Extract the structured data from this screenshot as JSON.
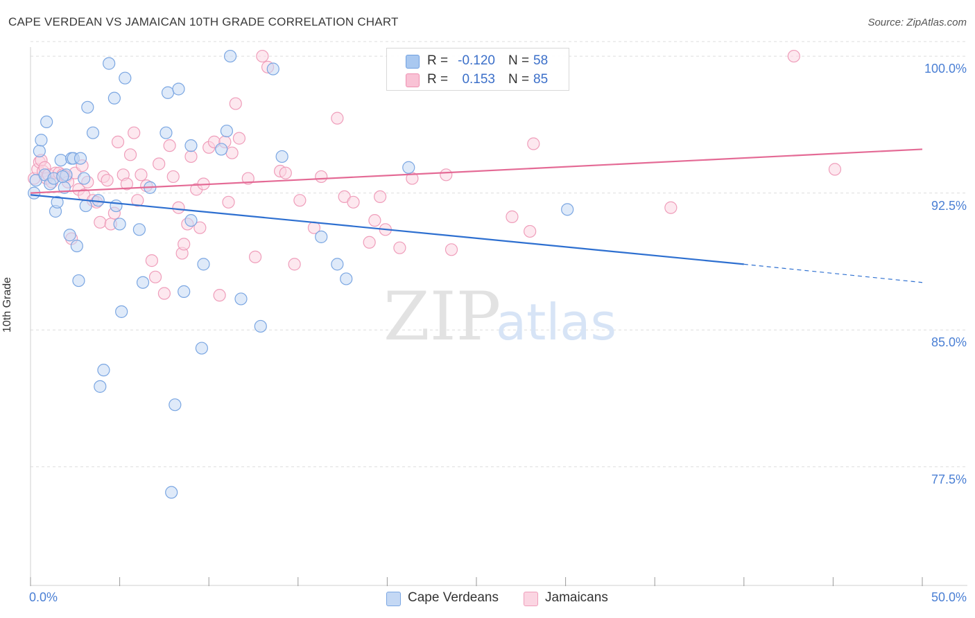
{
  "header": {
    "title": "CAPE VERDEAN VS JAMAICAN 10TH GRADE CORRELATION CHART",
    "source": "Source: ZipAtlas.com"
  },
  "watermark": {
    "zip": "ZIP",
    "atlas": "atlas"
  },
  "legend": {
    "rows": [
      {
        "r_label": "R =",
        "r_value": "-0.120",
        "n_label": "N =",
        "n_value": "58",
        "color": "#a9c8f0",
        "edge": "#6f9fe0"
      },
      {
        "r_label": "R =",
        "r_value": "0.153",
        "n_label": "N =",
        "n_value": "85",
        "color": "#f9c2d5",
        "edge": "#ee8fb0"
      }
    ]
  },
  "colors": {
    "blue_fill": "#c4d8f4",
    "blue_edge": "#7aa6e2",
    "blue_line": "#2d6fd0",
    "pink_fill": "#fbd5e2",
    "pink_edge": "#ef9dba",
    "pink_line": "#e46a95",
    "grid": "#dedede",
    "axis_text": "#4a7fd4"
  },
  "chart_data": {
    "type": "scatter",
    "title": "CAPE VERDEAN VS JAMAICAN 10TH GRADE CORRELATION CHART",
    "xlabel": "",
    "ylabel": "10th Grade",
    "xlim": [
      0,
      50
    ],
    "ylim": [
      71,
      100.8
    ],
    "x_ticks": [
      0,
      5,
      10,
      15,
      20,
      25,
      30,
      35,
      40,
      45,
      50
    ],
    "x_tick_labels": [
      "0.0%",
      "",
      "",
      "",
      "",
      "",
      "",
      "",
      "",
      "",
      "50.0%"
    ],
    "y_ticks": [
      77.5,
      85.0,
      92.5,
      100.0
    ],
    "y_tick_labels": [
      "77.5%",
      "85.0%",
      "92.5%",
      "100.0%"
    ],
    "grid": true,
    "legend_position": "top-center",
    "series": [
      {
        "name": "Cape Verdeans",
        "r": -0.12,
        "n": 58,
        "trend": {
          "x0": 0,
          "y0": 92.4,
          "x1": 40,
          "y1": 88.6,
          "dashed_to_x": 50,
          "dashed_to_y": 87.6
        },
        "points": [
          [
            0.2,
            92.5
          ],
          [
            0.3,
            93.2
          ],
          [
            0.5,
            94.8
          ],
          [
            0.6,
            95.4
          ],
          [
            0.8,
            93.5
          ],
          [
            0.9,
            96.4
          ],
          [
            1.1,
            93.0
          ],
          [
            1.3,
            93.3
          ],
          [
            1.4,
            91.5
          ],
          [
            1.5,
            92.0
          ],
          [
            1.7,
            94.3
          ],
          [
            1.9,
            92.8
          ],
          [
            2.0,
            93.5
          ],
          [
            2.2,
            90.2
          ],
          [
            2.3,
            94.4
          ],
          [
            2.4,
            94.4
          ],
          [
            2.6,
            89.6
          ],
          [
            2.7,
            87.7
          ],
          [
            2.8,
            94.4
          ],
          [
            3.0,
            93.3
          ],
          [
            3.1,
            91.8
          ],
          [
            3.2,
            97.2
          ],
          [
            3.5,
            95.8
          ],
          [
            3.8,
            92.1
          ],
          [
            4.1,
            82.8
          ],
          [
            4.4,
            99.6
          ],
          [
            4.7,
            97.7
          ],
          [
            4.8,
            91.8
          ],
          [
            5.0,
            90.8
          ],
          [
            5.1,
            86.0
          ],
          [
            5.3,
            98.8
          ],
          [
            6.1,
            90.5
          ],
          [
            6.3,
            87.6
          ],
          [
            6.7,
            92.8
          ],
          [
            7.6,
            95.8
          ],
          [
            7.7,
            98.0
          ],
          [
            7.9,
            76.1
          ],
          [
            8.1,
            80.9
          ],
          [
            8.3,
            98.2
          ],
          [
            8.6,
            87.1
          ],
          [
            9.0,
            95.1
          ],
          [
            9.0,
            91.0
          ],
          [
            9.6,
            84.0
          ],
          [
            9.7,
            88.6
          ],
          [
            10.7,
            94.9
          ],
          [
            11.0,
            95.9
          ],
          [
            11.2,
            100.0
          ],
          [
            11.8,
            86.7
          ],
          [
            12.9,
            85.2
          ],
          [
            13.6,
            99.3
          ],
          [
            14.1,
            94.5
          ],
          [
            16.3,
            90.1
          ],
          [
            17.2,
            88.6
          ],
          [
            17.7,
            87.8
          ],
          [
            21.2,
            93.9
          ],
          [
            30.1,
            91.6
          ],
          [
            3.9,
            81.9
          ],
          [
            1.8,
            93.4
          ]
        ]
      },
      {
        "name": "Jamaicans",
        "r": 0.153,
        "n": 85,
        "trend": {
          "x0": 0,
          "y0": 92.5,
          "x1": 50,
          "y1": 94.9
        },
        "points": [
          [
            0.2,
            93.3
          ],
          [
            0.4,
            93.8
          ],
          [
            0.5,
            94.2
          ],
          [
            0.6,
            94.3
          ],
          [
            0.7,
            93.7
          ],
          [
            0.8,
            93.9
          ],
          [
            0.9,
            93.3
          ],
          [
            1.0,
            93.5
          ],
          [
            1.2,
            93.1
          ],
          [
            1.4,
            93.6
          ],
          [
            1.6,
            93.6
          ],
          [
            1.8,
            93.5
          ],
          [
            2.0,
            93.4
          ],
          [
            2.1,
            93.1
          ],
          [
            2.3,
            90.0
          ],
          [
            2.5,
            93.6
          ],
          [
            2.7,
            92.7
          ],
          [
            2.9,
            94.0
          ],
          [
            3.0,
            92.4
          ],
          [
            3.2,
            93.1
          ],
          [
            3.5,
            92.1
          ],
          [
            3.7,
            92.0
          ],
          [
            3.9,
            90.9
          ],
          [
            4.1,
            93.4
          ],
          [
            4.3,
            93.2
          ],
          [
            4.5,
            90.8
          ],
          [
            4.7,
            91.4
          ],
          [
            4.9,
            95.3
          ],
          [
            5.2,
            93.5
          ],
          [
            5.4,
            93.0
          ],
          [
            5.6,
            94.6
          ],
          [
            5.8,
            95.8
          ],
          [
            6.0,
            92.1
          ],
          [
            6.2,
            93.5
          ],
          [
            6.5,
            92.9
          ],
          [
            6.8,
            88.8
          ],
          [
            7.0,
            87.9
          ],
          [
            7.2,
            94.1
          ],
          [
            7.5,
            87.0
          ],
          [
            7.8,
            95.1
          ],
          [
            8.0,
            93.4
          ],
          [
            8.3,
            91.7
          ],
          [
            8.5,
            89.2
          ],
          [
            8.6,
            89.7
          ],
          [
            8.8,
            90.8
          ],
          [
            9.0,
            94.5
          ],
          [
            9.3,
            92.7
          ],
          [
            9.5,
            90.6
          ],
          [
            9.7,
            93.0
          ],
          [
            10.0,
            95.0
          ],
          [
            10.3,
            95.3
          ],
          [
            10.6,
            86.9
          ],
          [
            10.9,
            95.3
          ],
          [
            11.1,
            92.0
          ],
          [
            11.3,
            94.7
          ],
          [
            11.5,
            97.4
          ],
          [
            11.7,
            95.5
          ],
          [
            12.2,
            93.3
          ],
          [
            12.6,
            89.0
          ],
          [
            13.0,
            100.0
          ],
          [
            13.3,
            99.4
          ],
          [
            14.0,
            93.7
          ],
          [
            14.3,
            93.6
          ],
          [
            14.8,
            88.6
          ],
          [
            15.1,
            92.1
          ],
          [
            15.9,
            90.6
          ],
          [
            16.3,
            93.4
          ],
          [
            17.2,
            96.6
          ],
          [
            17.6,
            92.3
          ],
          [
            18.1,
            92.0
          ],
          [
            19.0,
            89.8
          ],
          [
            19.3,
            91.0
          ],
          [
            19.6,
            92.3
          ],
          [
            19.9,
            90.5
          ],
          [
            20.7,
            89.5
          ],
          [
            21.4,
            93.3
          ],
          [
            23.3,
            93.5
          ],
          [
            23.6,
            89.4
          ],
          [
            24.5,
            99.5
          ],
          [
            27.0,
            91.2
          ],
          [
            28.0,
            90.4
          ],
          [
            28.2,
            95.2
          ],
          [
            35.9,
            91.7
          ],
          [
            42.8,
            100.0
          ],
          [
            45.1,
            93.8
          ]
        ]
      }
    ]
  }
}
